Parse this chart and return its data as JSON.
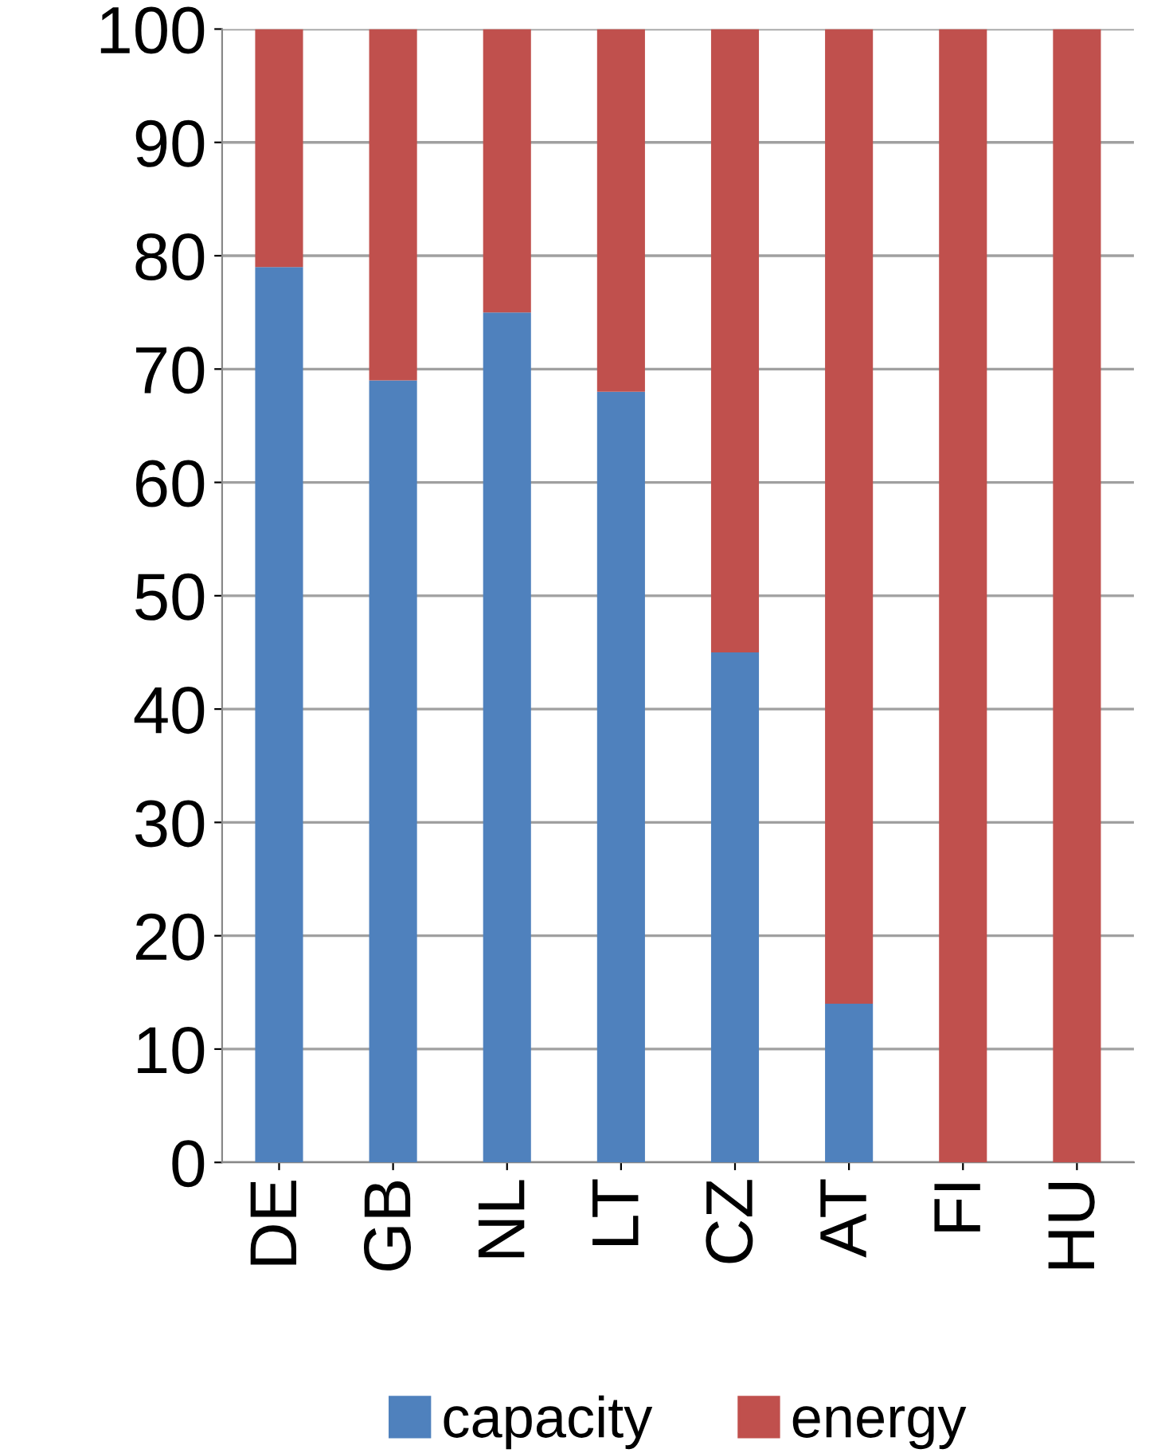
{
  "chart_data": {
    "type": "bar",
    "stacked": true,
    "categories": [
      "DE",
      "GB",
      "NL",
      "LT",
      "CZ",
      "AT",
      "FI",
      "HU"
    ],
    "series": [
      {
        "name": "capacity",
        "color": "#4f81bd",
        "values": [
          79,
          69,
          75,
          68,
          45,
          14,
          0,
          0
        ]
      },
      {
        "name": "energy",
        "color": "#c0504d",
        "values": [
          21,
          31,
          25,
          32,
          55,
          86,
          100,
          100
        ]
      }
    ],
    "ylim": [
      0,
      100
    ],
    "yticks": [
      0,
      10,
      20,
      30,
      40,
      50,
      60,
      70,
      80,
      90,
      100
    ],
    "grid": "y",
    "legend": "bottom"
  }
}
